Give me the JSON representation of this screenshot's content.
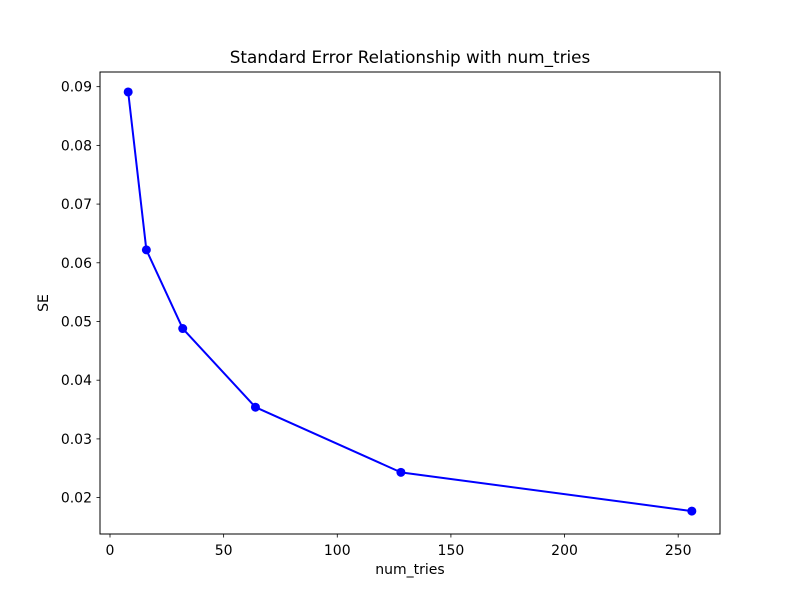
{
  "figure": {
    "background": "#ffffff",
    "text_color": "#000000"
  },
  "chart_data": {
    "type": "line",
    "title": "Standard Error Relationship with num_tries",
    "xlabel": "num_tries",
    "ylabel": "SE",
    "x": [
      8,
      16,
      32,
      64,
      128,
      256
    ],
    "y": [
      0.0891,
      0.0622,
      0.0488,
      0.0354,
      0.0243,
      0.0177
    ],
    "xlim": [
      -4.4,
      268.4
    ],
    "ylim": [
      0.0138,
      0.0925
    ],
    "xticks": [
      0,
      50,
      100,
      150,
      200,
      250
    ],
    "xtick_labels": [
      "0",
      "50",
      "100",
      "150",
      "200",
      "250"
    ],
    "yticks": [
      0.02,
      0.03,
      0.04,
      0.05,
      0.06,
      0.07,
      0.08,
      0.09
    ],
    "ytick_labels": [
      "0.02",
      "0.03",
      "0.04",
      "0.05",
      "0.06",
      "0.07",
      "0.08",
      "0.09"
    ],
    "line_color": "#0000ff",
    "marker": "o",
    "marker_color": "#0000ff",
    "grid": false,
    "legend": null,
    "spine_color": "#000000"
  }
}
